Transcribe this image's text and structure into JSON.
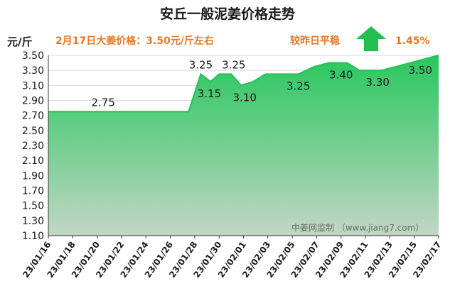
{
  "chart_data": {
    "type": "area",
    "title": "安丘一般泥姜价格走势",
    "ylabel": "元/斤",
    "subtitle_left": "2月17日大姜价格：3.50元/斤左右",
    "subtitle_right_label": "较昨日平稳",
    "subtitle_right_value": "1.45%",
    "watermark": "中姜网监制 （www.jiang7.com）",
    "ylim": [
      1.1,
      3.5
    ],
    "yticks": [
      "1.10",
      "1.30",
      "1.50",
      "1.70",
      "1.90",
      "2.10",
      "2.30",
      "2.50",
      "2.70",
      "2.90",
      "3.10",
      "3.30",
      "3.50"
    ],
    "xticks": [
      "23/01/16",
      "23/01/18",
      "23/01/20",
      "23/01/22",
      "23/01/24",
      "23/01/26",
      "23/01/28",
      "23/01/30",
      "23/02/01",
      "23/02/03",
      "23/02/05",
      "23/02/07",
      "23/02/09",
      "23/02/11",
      "23/02/13",
      "23/02/15",
      "23/02/17"
    ],
    "x_day_start": 0,
    "x_day_end": 32,
    "points": [
      {
        "d": 0,
        "v": 2.75
      },
      {
        "d": 11,
        "v": 2.75
      },
      {
        "d": 11.5,
        "v": 2.75
      },
      {
        "d": 12.5,
        "v": 3.25
      },
      {
        "d": 13.3,
        "v": 3.15
      },
      {
        "d": 14,
        "v": 3.25
      },
      {
        "d": 15,
        "v": 3.25
      },
      {
        "d": 15.8,
        "v": 3.1
      },
      {
        "d": 16.8,
        "v": 3.15
      },
      {
        "d": 17.8,
        "v": 3.25
      },
      {
        "d": 19.5,
        "v": 3.25
      },
      {
        "d": 20.5,
        "v": 3.25
      },
      {
        "d": 21.8,
        "v": 3.35
      },
      {
        "d": 23,
        "v": 3.4
      },
      {
        "d": 24.5,
        "v": 3.4
      },
      {
        "d": 25.5,
        "v": 3.3
      },
      {
        "d": 27.3,
        "v": 3.3
      },
      {
        "d": 28.5,
        "v": 3.35
      },
      {
        "d": 32,
        "v": 3.5
      }
    ],
    "data_labels": [
      {
        "d": 4.5,
        "v": 2.75,
        "text": "2.75"
      },
      {
        "d": 12.5,
        "v": 3.25,
        "text": "3.25"
      },
      {
        "d": 13.2,
        "v": 3.15,
        "text": "3.15"
      },
      {
        "d": 15.2,
        "v": 3.25,
        "text": "3.25"
      },
      {
        "d": 16.1,
        "v": 3.1,
        "text": "3.10"
      },
      {
        "d": 20.5,
        "v": 3.25,
        "text": "3.25"
      },
      {
        "d": 24.0,
        "v": 3.4,
        "text": "3.40"
      },
      {
        "d": 27.0,
        "v": 3.3,
        "text": "3.30"
      },
      {
        "d": 30.5,
        "v": 3.5,
        "text": "3.50"
      }
    ],
    "colors": {
      "line": "#27c35b",
      "fill_top": "#28c75d",
      "fill_bottom": "#c2d6c6",
      "arrow": "#22bf4f",
      "axis": "#333333",
      "grid": "#d9d9d9"
    }
  }
}
